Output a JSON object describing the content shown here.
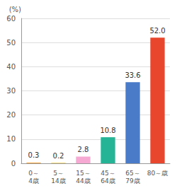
{
  "chart_data": {
    "type": "bar",
    "ylabel": "(%)",
    "categories": [
      "0～\n4歳",
      "5～\n14歳",
      "15～\n44歳",
      "45～\n64歳",
      "65～\n79歳",
      "80～歳"
    ],
    "values": [
      0.3,
      0.2,
      2.8,
      10.8,
      33.6,
      52.0
    ],
    "value_labels": [
      "0.3",
      "0.2",
      "2.8",
      "10.8",
      "33.6",
      "52.0"
    ],
    "colors": [
      "#f4a43a",
      "#f2cf4a",
      "#f5a9d3",
      "#25b596",
      "#4a7bc8",
      "#e8462d"
    ],
    "ylim": [
      0,
      60
    ],
    "yticks": [
      0,
      10,
      20,
      30,
      40,
      50,
      60
    ],
    "grid": true,
    "data_labels": true
  }
}
